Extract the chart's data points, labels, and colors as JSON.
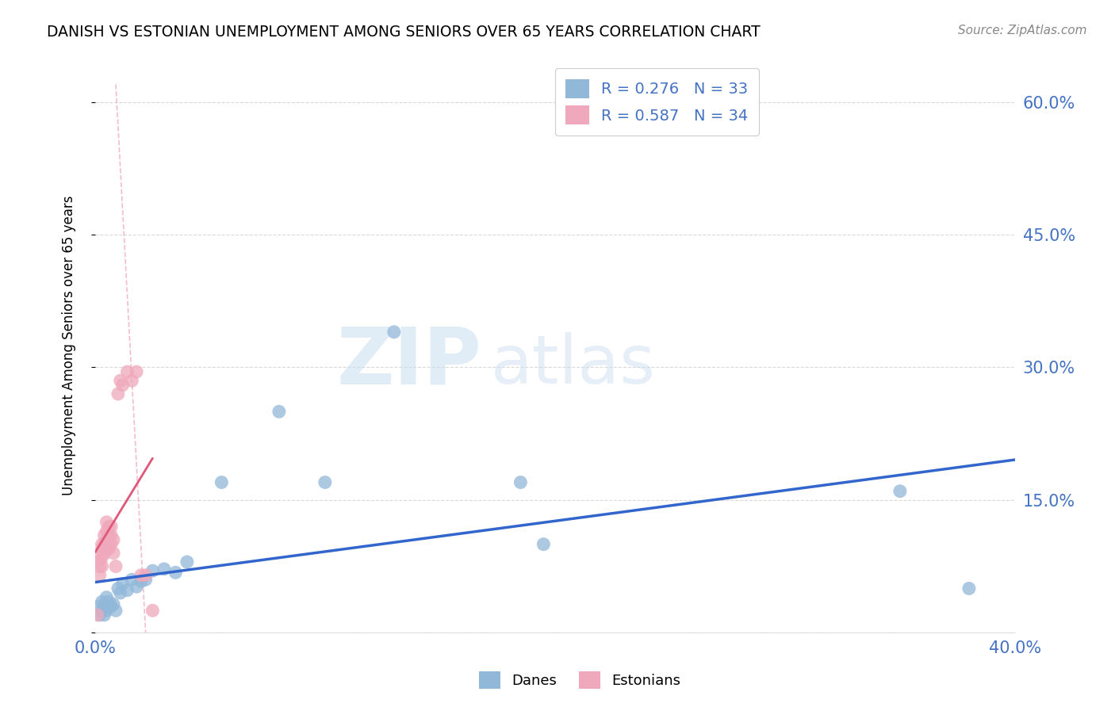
{
  "title": "DANISH VS ESTONIAN UNEMPLOYMENT AMONG SENIORS OVER 65 YEARS CORRELATION CHART",
  "source": "Source: ZipAtlas.com",
  "ylabel": "Unemployment Among Seniors over 65 years",
  "xlim": [
    0.0,
    0.4
  ],
  "ylim": [
    0.0,
    0.65
  ],
  "x_ticks": [
    0.0,
    0.05,
    0.1,
    0.15,
    0.2,
    0.25,
    0.3,
    0.35,
    0.4
  ],
  "y_ticks": [
    0.0,
    0.15,
    0.3,
    0.45,
    0.6
  ],
  "y_tick_labels_right": [
    "",
    "15.0%",
    "30.0%",
    "45.0%",
    "60.0%"
  ],
  "danes_R": 0.276,
  "danes_N": 33,
  "estonians_R": 0.587,
  "estonians_N": 34,
  "color_danes": "#92b8d9",
  "color_estonians": "#f0a8bc",
  "color_blue_text": "#4472c4",
  "color_pink_line": "#e05878",
  "danes_x": [
    0.002,
    0.002,
    0.003,
    0.003,
    0.004,
    0.004,
    0.005,
    0.005,
    0.006,
    0.006,
    0.007,
    0.008,
    0.009,
    0.01,
    0.011,
    0.012,
    0.014,
    0.016,
    0.018,
    0.02,
    0.022,
    0.025,
    0.03,
    0.035,
    0.04,
    0.055,
    0.08,
    0.1,
    0.13,
    0.185,
    0.195,
    0.35,
    0.38
  ],
  "danes_y": [
    0.02,
    0.03,
    0.025,
    0.035,
    0.02,
    0.03,
    0.025,
    0.04,
    0.028,
    0.035,
    0.03,
    0.032,
    0.025,
    0.05,
    0.045,
    0.055,
    0.048,
    0.06,
    0.052,
    0.058,
    0.06,
    0.07,
    0.072,
    0.068,
    0.08,
    0.17,
    0.25,
    0.17,
    0.34,
    0.17,
    0.1,
    0.16,
    0.05
  ],
  "estonians_x": [
    0.001,
    0.001,
    0.002,
    0.002,
    0.002,
    0.003,
    0.003,
    0.003,
    0.003,
    0.004,
    0.004,
    0.004,
    0.005,
    0.005,
    0.005,
    0.005,
    0.006,
    0.006,
    0.006,
    0.007,
    0.007,
    0.007,
    0.008,
    0.008,
    0.009,
    0.01,
    0.011,
    0.012,
    0.014,
    0.016,
    0.018,
    0.02,
    0.022,
    0.025
  ],
  "estonians_y": [
    0.02,
    0.08,
    0.065,
    0.075,
    0.085,
    0.075,
    0.085,
    0.095,
    0.1,
    0.09,
    0.1,
    0.11,
    0.095,
    0.105,
    0.115,
    0.125,
    0.095,
    0.11,
    0.12,
    0.1,
    0.11,
    0.12,
    0.09,
    0.105,
    0.075,
    0.27,
    0.285,
    0.28,
    0.295,
    0.285,
    0.295,
    0.065,
    0.065,
    0.025
  ],
  "watermark_zip": "ZIP",
  "watermark_atlas": "atlas",
  "background_color": "#ffffff",
  "grid_color": "#d0d0d0"
}
